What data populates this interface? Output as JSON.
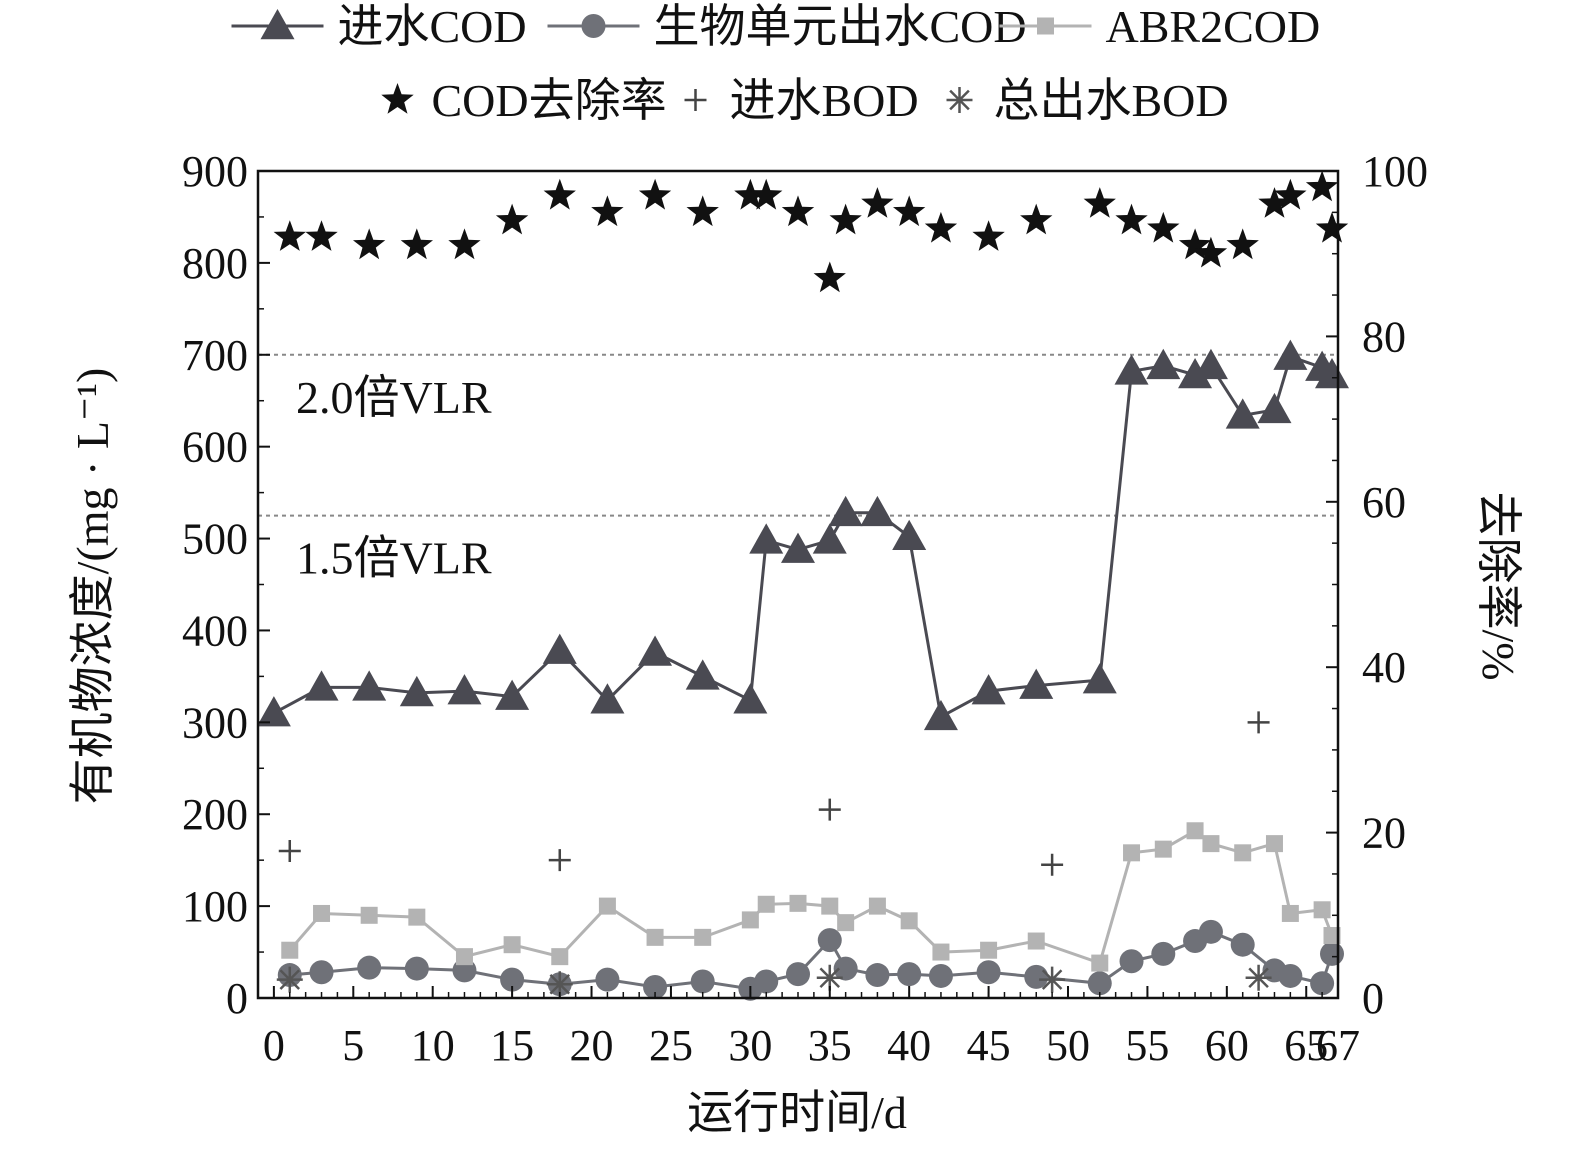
{
  "chart_data": {
    "type": "line",
    "xlabel": "运行时间/d",
    "ylabel_left": "有机物浓度/(mg · L⁻¹)",
    "ylabel_right": "去除率/%",
    "xlim": [
      -1,
      67
    ],
    "ylim_left": [
      0,
      900
    ],
    "ylim_right": [
      0,
      100
    ],
    "x_ticks": [
      0,
      5,
      10,
      15,
      20,
      25,
      30,
      35,
      40,
      45,
      50,
      55,
      60,
      65,
      67
    ],
    "x_tick_labels": [
      "0",
      "5",
      "10",
      "15",
      "20",
      "25",
      "30",
      "35",
      "40",
      "45",
      "50",
      "55",
      "60",
      "65",
      "67"
    ],
    "y_left_ticks": [
      0,
      100,
      200,
      300,
      400,
      500,
      600,
      700,
      800,
      900
    ],
    "y_left_tick_labels": [
      "0",
      "100",
      "200",
      "300",
      "400",
      "500",
      "600",
      "700",
      "800",
      "900"
    ],
    "y_right_ticks": [
      0,
      20,
      40,
      60,
      80,
      100
    ],
    "y_right_tick_labels": [
      "0",
      "20",
      "40",
      "60",
      "80",
      "100"
    ],
    "grid": false,
    "legend_position": "top",
    "reference_lines": [
      {
        "y": 700,
        "label": "2.0倍VLR"
      },
      {
        "y": 525,
        "label": "1.5倍VLR"
      }
    ],
    "series": [
      {
        "name": "进水COD",
        "axis": "left",
        "marker": "triangle",
        "line": "solid",
        "color": "#4a4a52",
        "x": [
          0,
          3,
          6,
          9,
          12,
          15,
          18,
          21,
          24,
          27,
          30,
          31,
          33,
          35,
          36,
          38,
          40,
          42,
          45,
          48,
          52,
          54,
          56,
          58,
          59,
          61,
          63,
          64,
          66,
          68
        ],
        "y": [
          310,
          338,
          338,
          332,
          334,
          328,
          378,
          324,
          376,
          350,
          324,
          498,
          488,
          498,
          528,
          528,
          502,
          306,
          334,
          340,
          346,
          682,
          688,
          678,
          688,
          634,
          640,
          698,
          686,
          678
        ]
      },
      {
        "name": "生物单元出水COD",
        "axis": "left",
        "marker": "circle",
        "line": "solid",
        "color": "#6f7178",
        "x": [
          1,
          3,
          6,
          9,
          12,
          15,
          18,
          21,
          24,
          27,
          30,
          31,
          33,
          35,
          36,
          38,
          40,
          42,
          45,
          48,
          52,
          54,
          56,
          58,
          59,
          61,
          63,
          64,
          66,
          68
        ],
        "y": [
          25,
          28,
          33,
          32,
          30,
          20,
          15,
          20,
          12,
          18,
          10,
          18,
          26,
          63,
          32,
          25,
          26,
          24,
          28,
          23,
          16,
          40,
          48,
          62,
          72,
          58,
          30,
          24,
          16,
          48
        ]
      },
      {
        "name": "ABR2COD",
        "axis": "left",
        "marker": "square",
        "line": "solid",
        "color": "#b3b3b3",
        "x": [
          1,
          3,
          6,
          9,
          12,
          15,
          18,
          21,
          24,
          27,
          30,
          31,
          33,
          35,
          36,
          38,
          40,
          42,
          45,
          48,
          52,
          54,
          56,
          58,
          59,
          61,
          63,
          64,
          66,
          68
        ],
        "y": [
          52,
          92,
          90,
          88,
          45,
          58,
          45,
          100,
          66,
          66,
          85,
          102,
          103,
          100,
          82,
          100,
          84,
          50,
          52,
          62,
          38,
          158,
          162,
          182,
          168,
          158,
          168,
          92,
          96,
          68
        ]
      },
      {
        "name": "COD去除率",
        "axis": "right",
        "marker": "star",
        "line": "none",
        "color": "#111111",
        "x": [
          1,
          3,
          6,
          9,
          12,
          15,
          18,
          21,
          24,
          27,
          30,
          31,
          33,
          35,
          36,
          38,
          40,
          42,
          45,
          48,
          52,
          54,
          56,
          58,
          59,
          61,
          63,
          64,
          66,
          68
        ],
        "y": [
          92,
          92,
          91,
          91,
          91,
          94,
          97,
          95,
          97,
          95,
          97,
          97,
          95,
          87,
          94,
          96,
          95,
          93,
          92,
          94,
          96,
          94,
          93,
          91,
          90,
          91,
          96,
          97,
          98,
          93
        ]
      },
      {
        "name": "进水BOD",
        "axis": "left",
        "marker": "plus",
        "line": "none",
        "color": "#444444",
        "x": [
          1,
          18,
          35,
          49,
          62
        ],
        "y": [
          160,
          150,
          205,
          145,
          300
        ]
      },
      {
        "name": "总出水BOD",
        "axis": "left",
        "marker": "asterisk",
        "line": "none",
        "color": "#555555",
        "x": [
          1,
          18,
          35,
          49,
          62
        ],
        "y": [
          20,
          15,
          22,
          20,
          22
        ]
      }
    ]
  }
}
